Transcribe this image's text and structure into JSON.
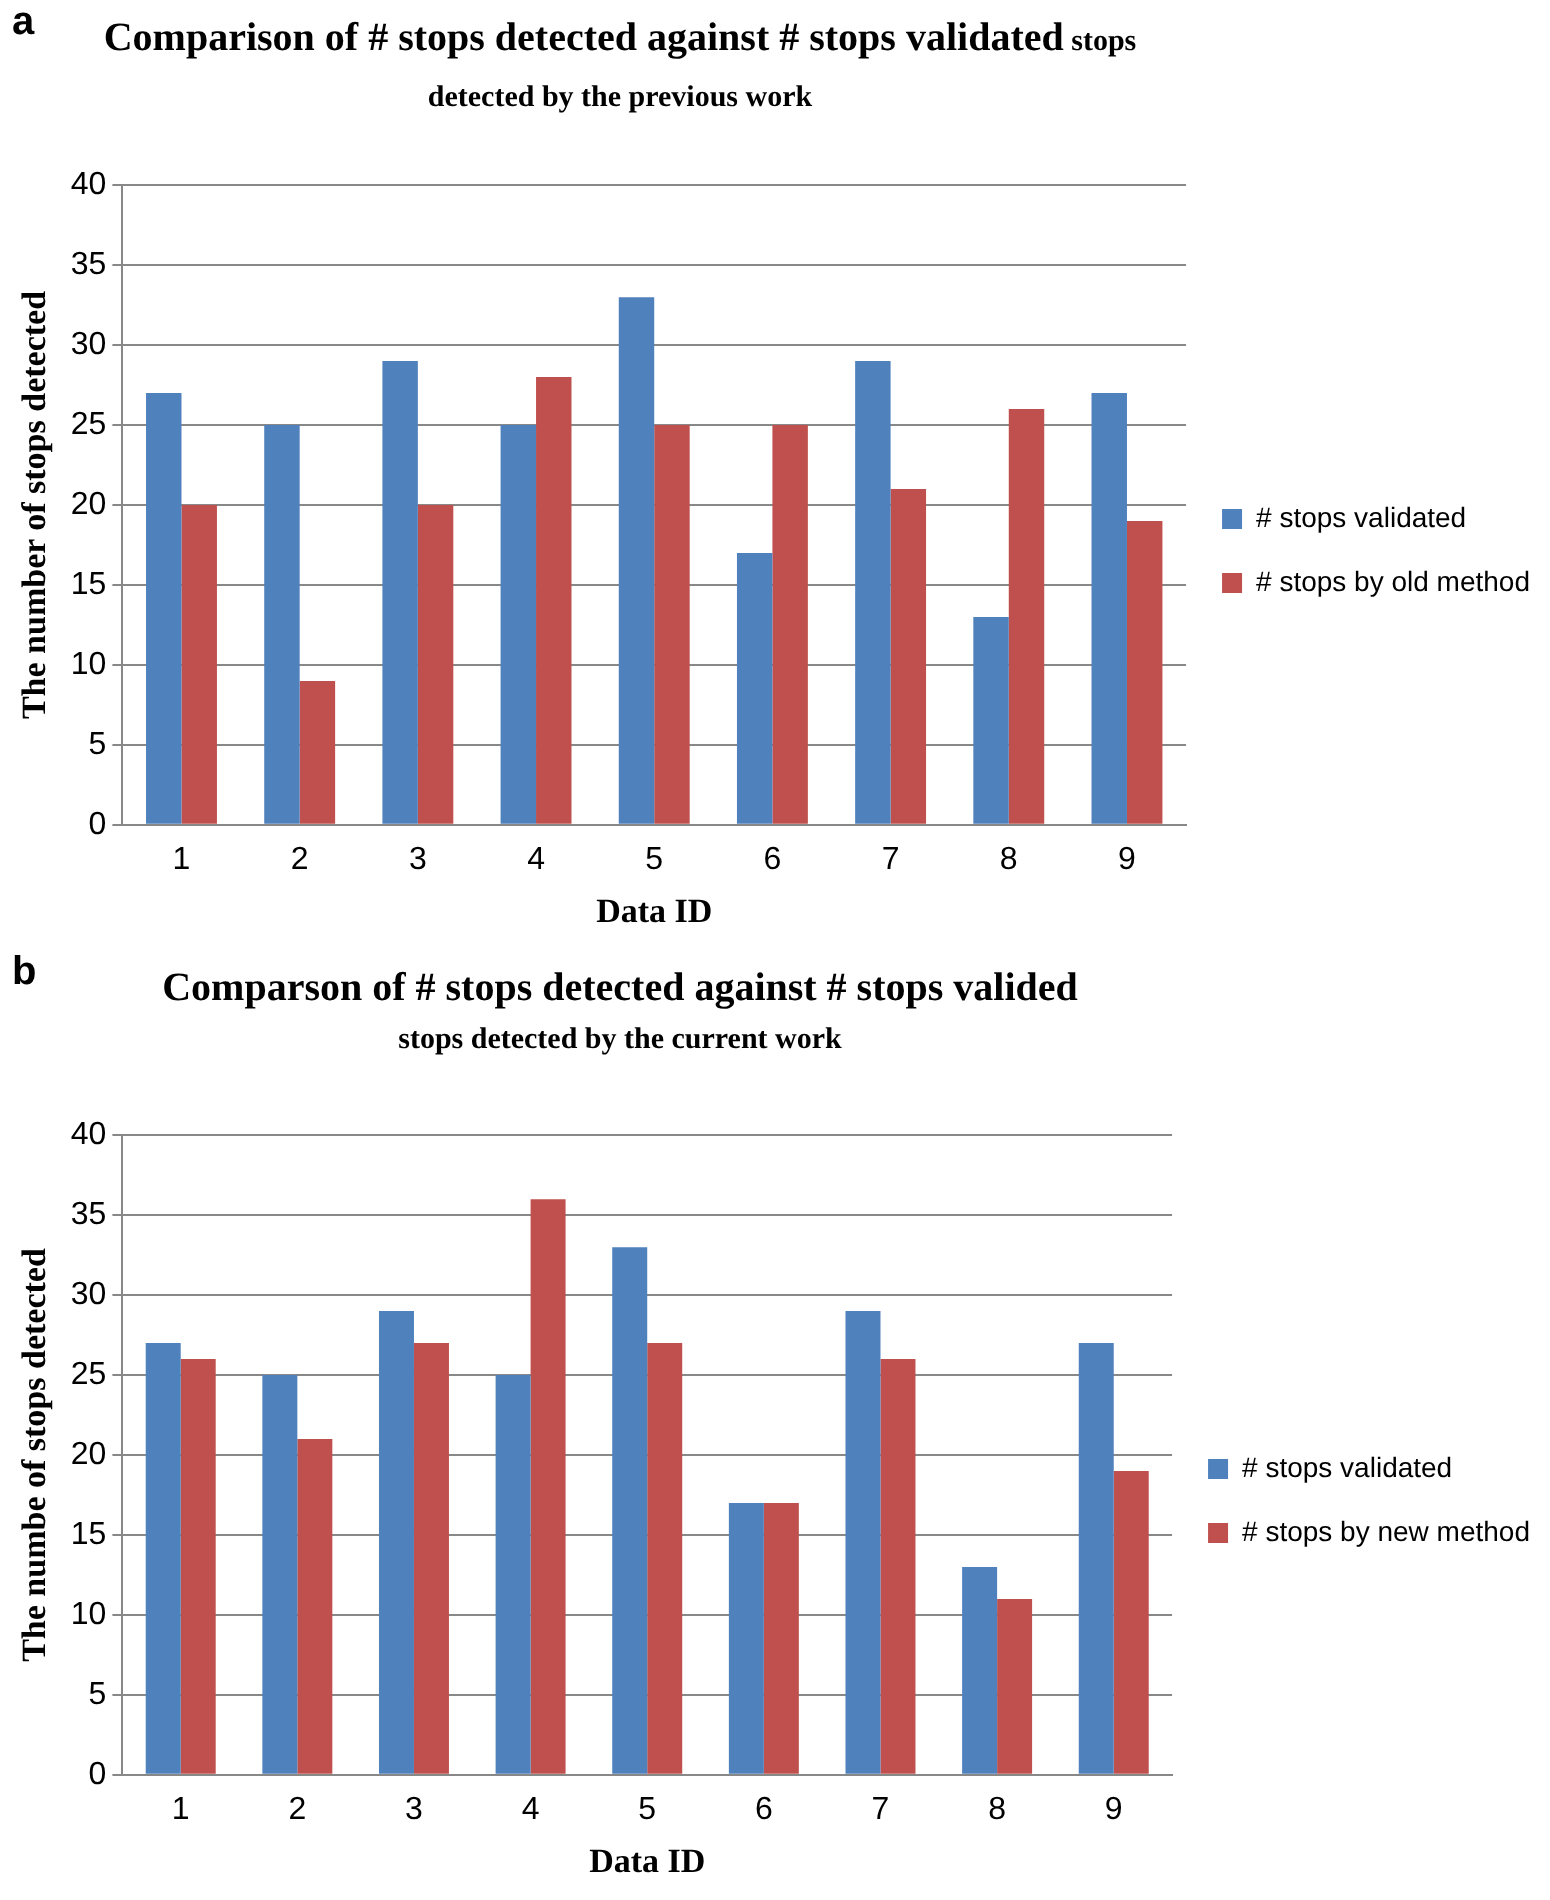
{
  "chart_data": [
    {
      "type": "bar",
      "title": "Comparison of # stops detected against # stops validated",
      "subtitle": "stops detected by the previous work",
      "annotations": [
        "a"
      ],
      "xlabel": "Data ID",
      "ylabel": "The number of stops detected",
      "categories": [
        "1",
        "2",
        "3",
        "4",
        "5",
        "6",
        "7",
        "8",
        "9"
      ],
      "series": [
        {
          "name": "# stops validated",
          "color": "#4f81bd",
          "values": [
            27,
            25,
            29,
            25,
            33,
            17,
            29,
            13,
            27
          ]
        },
        {
          "name": "# stops by old method",
          "color": "#c0504d",
          "values": [
            20,
            9,
            20,
            28,
            25,
            25,
            21,
            26,
            19
          ]
        }
      ],
      "ylim": [
        0,
        40
      ],
      "yticks": [
        0,
        5,
        10,
        15,
        20,
        25,
        30,
        35,
        40
      ],
      "grid": "y",
      "legend": "right"
    },
    {
      "type": "bar",
      "title": "Comparson of # stops detected against # stops valided",
      "subtitle": "stops detected by the current work",
      "annotations": [
        "b"
      ],
      "xlabel": "Data ID",
      "ylabel": "The numbe of stops detected",
      "categories": [
        "1",
        "2",
        "3",
        "4",
        "5",
        "6",
        "7",
        "8",
        "9"
      ],
      "series": [
        {
          "name": "# stops validated",
          "color": "#4f81bd",
          "values": [
            27,
            25,
            29,
            25,
            33,
            17,
            29,
            13,
            27
          ]
        },
        {
          "name": "# stops by new method",
          "color": "#c0504d",
          "values": [
            26,
            21,
            27,
            36,
            27,
            17,
            26,
            11,
            19
          ]
        }
      ],
      "ylim": [
        0,
        40
      ],
      "yticks": [
        0,
        5,
        10,
        15,
        20,
        25,
        30,
        35,
        40
      ],
      "grid": "y",
      "legend": "right"
    }
  ]
}
